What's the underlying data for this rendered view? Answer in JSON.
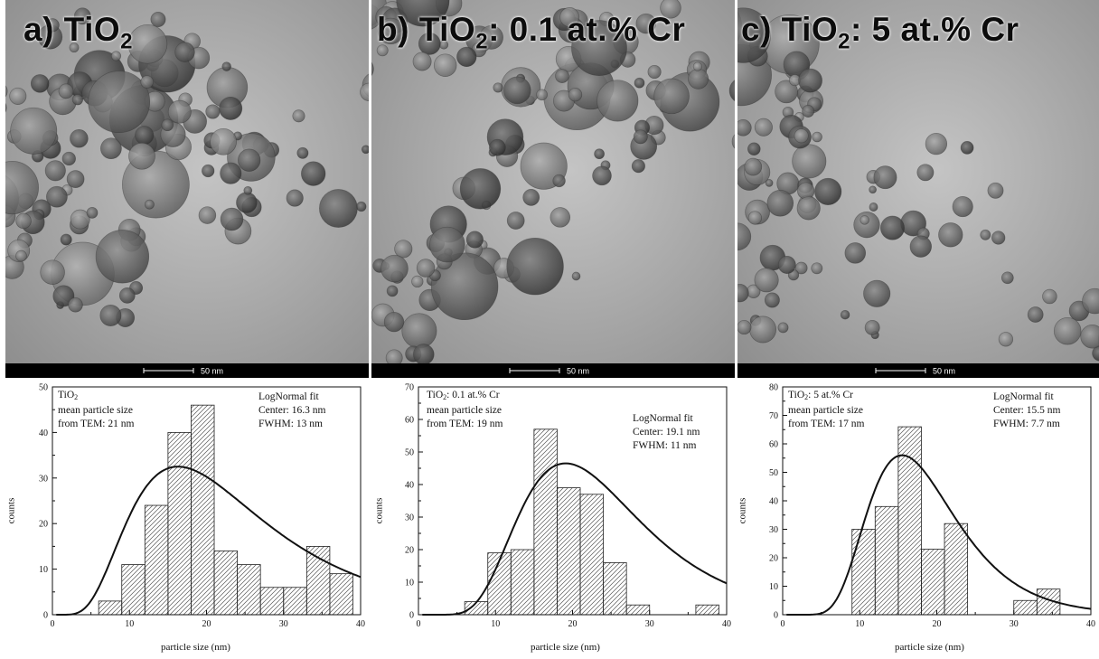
{
  "panels": [
    {
      "label_prefix": "a)   TiO",
      "label_sub": "2",
      "label_suffix": "",
      "scale_bar": "50 nm",
      "density": 0.9,
      "seed": 11
    },
    {
      "label_prefix": "b) TiO",
      "label_sub": "2",
      "label_suffix": ": 0.1 at.% Cr",
      "scale_bar": "50 nm",
      "density": 1.0,
      "seed": 29
    },
    {
      "label_prefix": "c) TiO",
      "label_sub": "2",
      "label_suffix": ": 5 at.% Cr",
      "scale_bar": "50 nm",
      "density": 0.8,
      "seed": 47
    }
  ],
  "chart_data": [
    {
      "type": "bar",
      "sample_prefix": "TiO",
      "sample_sub": "2",
      "sample_suffix": "",
      "mean_line1": "mean particle size",
      "mean_line2": "from TEM: 21 nm",
      "fit_title": "LogNormal fit",
      "fit_center": "Center: 16.3 nm",
      "fit_fwhm": "FWHM: 13 nm",
      "xlabel": "particle size (nm)",
      "ylabel": "counts",
      "xlim": [
        0,
        40
      ],
      "ylim": [
        0,
        50
      ],
      "xticks": [
        0,
        10,
        20,
        30,
        40
      ],
      "yticks": [
        0,
        10,
        20,
        30,
        40,
        50
      ],
      "bins": [
        {
          "x0": 6,
          "x1": 9,
          "count": 3
        },
        {
          "x0": 9,
          "x1": 12,
          "count": 11
        },
        {
          "x0": 12,
          "x1": 15,
          "count": 24
        },
        {
          "x0": 15,
          "x1": 18,
          "count": 40
        },
        {
          "x0": 18,
          "x1": 21,
          "count": 46
        },
        {
          "x0": 21,
          "x1": 24,
          "count": 14
        },
        {
          "x0": 24,
          "x1": 27,
          "count": 11
        },
        {
          "x0": 27,
          "x1": 30,
          "count": 6
        },
        {
          "x0": 30,
          "x1": 33,
          "count": 6
        },
        {
          "x0": 33,
          "x1": 36,
          "count": 15
        },
        {
          "x0": 36,
          "x1": 39,
          "count": 9
        }
      ],
      "fit": {
        "center": 16.3,
        "fwhm": 13,
        "peak": 32.5
      }
    },
    {
      "type": "bar",
      "sample_prefix": "TiO",
      "sample_sub": "2",
      "sample_suffix": ": 0.1 at.% Cr",
      "mean_line1": "mean particle size",
      "mean_line2": "from TEM: 19 nm",
      "fit_title": "LogNormal fit",
      "fit_center": "Center: 19.1 nm",
      "fit_fwhm": "FWHM: 11 nm",
      "xlabel": "particle size (nm)",
      "ylabel": "counts",
      "xlim": [
        0,
        40
      ],
      "ylim": [
        0,
        70
      ],
      "xticks": [
        0,
        10,
        20,
        30,
        40
      ],
      "yticks": [
        0,
        10,
        20,
        30,
        40,
        50,
        60,
        70
      ],
      "bins": [
        {
          "x0": 6,
          "x1": 9,
          "count": 4
        },
        {
          "x0": 9,
          "x1": 12,
          "count": 19
        },
        {
          "x0": 12,
          "x1": 15,
          "count": 20
        },
        {
          "x0": 15,
          "x1": 18,
          "count": 57
        },
        {
          "x0": 18,
          "x1": 21,
          "count": 39
        },
        {
          "x0": 21,
          "x1": 24,
          "count": 37
        },
        {
          "x0": 24,
          "x1": 27,
          "count": 16
        },
        {
          "x0": 27,
          "x1": 30,
          "count": 3
        },
        {
          "x0": 36,
          "x1": 39,
          "count": 3
        }
      ],
      "fit": {
        "center": 19.1,
        "fwhm": 11,
        "peak": 46.5
      }
    },
    {
      "type": "bar",
      "sample_prefix": "TiO",
      "sample_sub": "2",
      "sample_suffix": ": 5 at.% Cr",
      "mean_line1": "mean particle size",
      "mean_line2": "from TEM: 17 nm",
      "fit_title": "LogNormal fit",
      "fit_center": "Center:  15.5 nm",
      "fit_fwhm": "FWHM:  7.7 nm",
      "xlabel": "particle size (nm)",
      "ylabel": "counts",
      "xlim": [
        0,
        40
      ],
      "ylim": [
        0,
        80
      ],
      "xticks": [
        0,
        10,
        20,
        30,
        40
      ],
      "yticks": [
        0,
        10,
        20,
        30,
        40,
        50,
        60,
        70,
        80
      ],
      "bins": [
        {
          "x0": 9,
          "x1": 12,
          "count": 30
        },
        {
          "x0": 12,
          "x1": 15,
          "count": 38
        },
        {
          "x0": 15,
          "x1": 18,
          "count": 66
        },
        {
          "x0": 18,
          "x1": 21,
          "count": 23
        },
        {
          "x0": 21,
          "x1": 24,
          "count": 32
        },
        {
          "x0": 30,
          "x1": 33,
          "count": 5
        },
        {
          "x0": 33,
          "x1": 36,
          "count": 9
        }
      ],
      "fit": {
        "center": 15.5,
        "fwhm": 7.7,
        "peak": 56
      }
    }
  ]
}
